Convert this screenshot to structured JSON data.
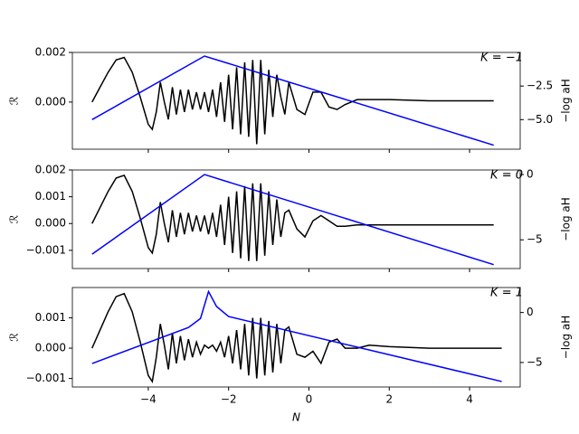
{
  "chart_data": [
    {
      "type": "line",
      "ylabel": "ℛ",
      "y2label": "−log aH",
      "annotation": "K = −1",
      "xlim": [
        -5.89,
        5.26
      ],
      "ylim": [
        -0.0019,
        0.002
      ],
      "y2lim": [
        -7.2,
        0
      ],
      "yticks": [
        {
          "value": 0.002,
          "label": "0.002"
        },
        {
          "value": 0,
          "label": "0.000"
        }
      ],
      "y2ticks": [
        {
          "value": -2.5,
          "label": "−2.5"
        },
        {
          "value": -5,
          "label": "−5.0"
        }
      ],
      "x": [
        -5.4,
        -5.2,
        -5.0,
        -4.8,
        -4.6,
        -4.4,
        -4.2,
        -4.0,
        -3.9,
        -3.8,
        -3.7,
        -3.6,
        -3.5,
        -3.4,
        -3.3,
        -3.2,
        -3.1,
        -3.0,
        -2.9,
        -2.8,
        -2.7,
        -2.6,
        -2.5,
        -2.4,
        -2.3,
        -2.2,
        -2.1,
        -2.0,
        -1.9,
        -1.8,
        -1.7,
        -1.6,
        -1.5,
        -1.4,
        -1.3,
        -1.2,
        -1.1,
        -1.0,
        -0.9,
        -0.8,
        -0.7,
        -0.6,
        -0.5,
        -0.3,
        -0.1,
        0.1,
        0.3,
        0.5,
        0.7,
        0.9,
        1.2,
        1.5,
        2.0,
        3.0,
        4.6
      ],
      "series": [
        {
          "color": "#000000",
          "values": [
            0,
            0.0006,
            0.0012,
            0.0017,
            0.0018,
            0.0012,
            0.0002,
            -0.0009,
            -0.0011,
            -0.0004,
            0.0008,
            0,
            -0.0007,
            0.0006,
            -0.0005,
            0.0005,
            -0.0004,
            0.0005,
            -0.0003,
            0.0004,
            -0.0003,
            0.0004,
            -0.0004,
            0.0005,
            -0.0006,
            0.0008,
            -0.0008,
            0.0011,
            -0.0011,
            0.0014,
            -0.0013,
            0.0016,
            -0.0014,
            0.0017,
            -0.0017,
            0.0017,
            -0.0013,
            0.0013,
            -0.0006,
            0.0011,
            0.0002,
            -0.0005,
            0.0008,
            -0.0003,
            -0.0005,
            0.0004,
            0.0004,
            -0.0002,
            -0.0003,
            -0.0001,
            0.0001,
            0.0001,
            0.0001,
            5e-05,
            5e-05
          ]
        },
        {
          "color": "#0000ff",
          "axis": "y2",
          "x": [
            -5.4,
            -2.6,
            4.6
          ],
          "values": [
            -5.0,
            -0.27,
            -6.9
          ]
        }
      ]
    },
    {
      "type": "line",
      "ylabel": "ℛ",
      "y2label": "−log aH",
      "annotation": "K = 0",
      "xlim": [
        -5.89,
        5.26
      ],
      "ylim": [
        -0.00168,
        0.002
      ],
      "y2lim": [
        -7.2,
        0.35
      ],
      "yticks": [
        {
          "value": 0.002,
          "label": "0.002"
        },
        {
          "value": 0.001,
          "label": "0.001"
        },
        {
          "value": 0,
          "label": "0.000"
        },
        {
          "value": -0.001,
          "label": "−0.001"
        }
      ],
      "y2ticks": [
        0,
        {
          "value": -5,
          "label": "−5"
        }
      ],
      "x": [
        -5.4,
        -5.2,
        -5.0,
        -4.8,
        -4.6,
        -4.4,
        -4.2,
        -4.0,
        -3.9,
        -3.8,
        -3.7,
        -3.6,
        -3.5,
        -3.4,
        -3.3,
        -3.2,
        -3.1,
        -3.0,
        -2.9,
        -2.8,
        -2.7,
        -2.6,
        -2.5,
        -2.4,
        -2.3,
        -2.2,
        -2.1,
        -2.0,
        -1.9,
        -1.8,
        -1.7,
        -1.6,
        -1.5,
        -1.4,
        -1.3,
        -1.2,
        -1.1,
        -1.0,
        -0.9,
        -0.8,
        -0.7,
        -0.6,
        -0.5,
        -0.3,
        -0.1,
        0.1,
        0.3,
        0.5,
        0.7,
        0.9,
        1.2,
        1.5,
        2.0,
        3.0,
        4.6
      ],
      "series": [
        {
          "color": "#000000",
          "values": [
            0,
            0.0006,
            0.0012,
            0.0017,
            0.0018,
            0.0012,
            0.0002,
            -0.0009,
            -0.0011,
            -0.0004,
            0.0008,
            0,
            -0.0007,
            0.0005,
            -0.0005,
            0.0004,
            -0.0004,
            0.0004,
            -0.0003,
            0.0003,
            -0.0003,
            0.0003,
            -0.0004,
            0.0004,
            -0.0005,
            0.0007,
            -0.0008,
            0.001,
            -0.0011,
            0.0012,
            -0.0013,
            0.0014,
            -0.0014,
            0.0015,
            -0.0014,
            0.0015,
            -0.0012,
            0.0012,
            -0.0008,
            0.0009,
            -0.0005,
            0.0004,
            0.0005,
            -0.0002,
            -0.0005,
            0.0001,
            0.0003,
            0.0001,
            -0.0001,
            -0.0001,
            -5e-05,
            -5e-05,
            -5e-05,
            -5e-05,
            -5e-05
          ]
        },
        {
          "color": "#0000ff",
          "axis": "y2",
          "x": [
            -5.4,
            -2.6,
            4.6
          ],
          "values": [
            -6.1,
            0,
            -6.9
          ]
        }
      ]
    },
    {
      "type": "line",
      "ylabel": "ℛ",
      "y2label": "−log aH",
      "annotation": "K = 1",
      "xlabel": "N",
      "xlim": [
        -5.89,
        5.26
      ],
      "ylim": [
        -0.00128,
        0.002
      ],
      "y2lim": [
        -7.45,
        2.5
      ],
      "xticks": [
        {
          "value": -4,
          "label": "−4"
        },
        {
          "value": -2,
          "label": "−2"
        },
        0,
        2,
        4
      ],
      "yticks": [
        {
          "value": 0.001,
          "label": "0.001"
        },
        {
          "value": 0,
          "label": "0.000"
        },
        {
          "value": -0.001,
          "label": "−0.001"
        }
      ],
      "y2ticks": [
        0,
        {
          "value": -5,
          "label": "−5"
        }
      ],
      "x": [
        -5.4,
        -5.2,
        -5.0,
        -4.8,
        -4.6,
        -4.4,
        -4.2,
        -4.0,
        -3.9,
        -3.8,
        -3.7,
        -3.6,
        -3.5,
        -3.4,
        -3.3,
        -3.2,
        -3.1,
        -3.0,
        -2.9,
        -2.8,
        -2.7,
        -2.6,
        -2.5,
        -2.4,
        -2.3,
        -2.2,
        -2.1,
        -2.0,
        -1.9,
        -1.8,
        -1.7,
        -1.6,
        -1.5,
        -1.4,
        -1.3,
        -1.2,
        -1.1,
        -1.0,
        -0.9,
        -0.8,
        -0.7,
        -0.6,
        -0.5,
        -0.3,
        -0.1,
        0.1,
        0.3,
        0.5,
        0.7,
        0.9,
        1.2,
        1.5,
        2.0,
        3.0,
        4.8
      ],
      "series": [
        {
          "color": "#000000",
          "values": [
            0,
            0.0006,
            0.0012,
            0.0017,
            0.0018,
            0.0012,
            0.0002,
            -0.0009,
            -0.0011,
            -0.0003,
            0.0008,
            0.0001,
            -0.0007,
            0.0005,
            -0.0005,
            0.0004,
            -0.0004,
            0.0003,
            -0.0003,
            0.0002,
            -0.0002,
            0.0001,
            0,
            0.0001,
            -0.0001,
            0.0002,
            -0.0003,
            0.0004,
            -0.0005,
            0.0006,
            -0.0007,
            0.0008,
            -0.0009,
            0.001,
            -0.001,
            0.001,
            -0.0009,
            0.0009,
            -0.0008,
            0.0008,
            -0.0005,
            0.0006,
            0.0007,
            -0.0002,
            -0.0003,
            -0.0001,
            -0.0005,
            0.0002,
            0.0003,
            0,
            0,
            0.0001,
            5e-05,
            0,
            0
          ]
        },
        {
          "color": "#0000ff",
          "axis": "y2",
          "x": [
            -5.4,
            -3.0,
            -2.7,
            -2.5,
            -2.3,
            -2.0,
            4.8
          ],
          "values": [
            -5.1,
            -1.5,
            -0.6,
            2.1,
            0.6,
            -0.4,
            -6.9
          ]
        }
      ]
    }
  ]
}
